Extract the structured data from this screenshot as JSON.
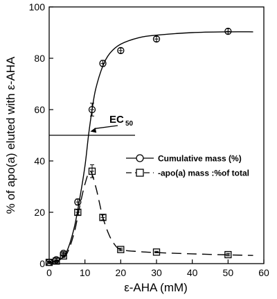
{
  "chart_data": {
    "type": "line",
    "xlabel": "ε-AHA (mM)",
    "ylabel": "% of apo(a) eluted with ε-AHA",
    "xlim": [
      0,
      60
    ],
    "ylim": [
      0,
      100
    ],
    "xticks": [
      0,
      10,
      20,
      30,
      40,
      50,
      60
    ],
    "yticks": [
      0,
      20,
      40,
      60,
      80,
      100
    ],
    "grid": false,
    "legend_position": "center-right",
    "series": [
      {
        "name": "Cumulative mass (%)",
        "marker": "circle",
        "line_style": "solid",
        "points": [
          {
            "x": 0,
            "y": 0.5,
            "err": 0.5
          },
          {
            "x": 2,
            "y": 1.5,
            "err": 0.5
          },
          {
            "x": 4,
            "y": 4,
            "err": 0.7
          },
          {
            "x": 8,
            "y": 24,
            "err": 1.2
          },
          {
            "x": 12,
            "y": 60,
            "err": 2.5
          },
          {
            "x": 15,
            "y": 78,
            "err": 1.2
          },
          {
            "x": 20,
            "y": 83,
            "err": 1
          },
          {
            "x": 30,
            "y": 87.5,
            "err": 1
          },
          {
            "x": 50,
            "y": 90.5,
            "err": 1
          }
        ],
        "curve": [
          [
            0,
            0.2
          ],
          [
            3,
            1.5
          ],
          [
            5,
            5
          ],
          [
            7,
            14
          ],
          [
            8.5,
            25
          ],
          [
            10,
            38
          ],
          [
            11,
            50
          ],
          [
            12,
            60
          ],
          [
            13,
            68
          ],
          [
            15,
            77
          ],
          [
            17,
            82
          ],
          [
            20,
            85.5
          ],
          [
            25,
            88
          ],
          [
            30,
            89
          ],
          [
            40,
            90
          ],
          [
            50,
            90.3
          ],
          [
            57,
            90.3
          ]
        ]
      },
      {
        "name": "-apo(a) mass :%of total",
        "marker": "square",
        "line_style": "dashed",
        "points": [
          {
            "x": 0,
            "y": 0.5,
            "err": 0.3
          },
          {
            "x": 2,
            "y": 1,
            "err": 0.3
          },
          {
            "x": 4,
            "y": 3,
            "err": 0.5
          },
          {
            "x": 8,
            "y": 20,
            "err": 1
          },
          {
            "x": 12,
            "y": 36,
            "err": 2.5
          },
          {
            "x": 15,
            "y": 18,
            "err": 1
          },
          {
            "x": 20,
            "y": 5.5,
            "err": 0.5
          },
          {
            "x": 30,
            "y": 4.5,
            "err": 0.3
          },
          {
            "x": 50,
            "y": 3.5,
            "err": 0.5
          }
        ],
        "curve": [
          [
            0,
            0.3
          ],
          [
            3,
            1.5
          ],
          [
            5,
            4
          ],
          [
            7,
            12
          ],
          [
            8.5,
            22
          ],
          [
            10,
            31
          ],
          [
            11.5,
            36
          ],
          [
            13,
            30
          ],
          [
            14,
            24
          ],
          [
            15,
            18
          ],
          [
            16.5,
            12
          ],
          [
            18,
            8
          ],
          [
            20,
            5.5
          ],
          [
            25,
            4.7
          ],
          [
            30,
            4.3
          ],
          [
            40,
            3.8
          ],
          [
            50,
            3.4
          ],
          [
            57,
            3.2
          ]
        ]
      }
    ],
    "reference_line": {
      "y": 50,
      "x_range": [
        0,
        24
      ]
    },
    "annotations": [
      {
        "text": "EC",
        "subscript": "50",
        "arrow_to": {
          "x": 11.5,
          "y": 51.5
        }
      }
    ]
  }
}
